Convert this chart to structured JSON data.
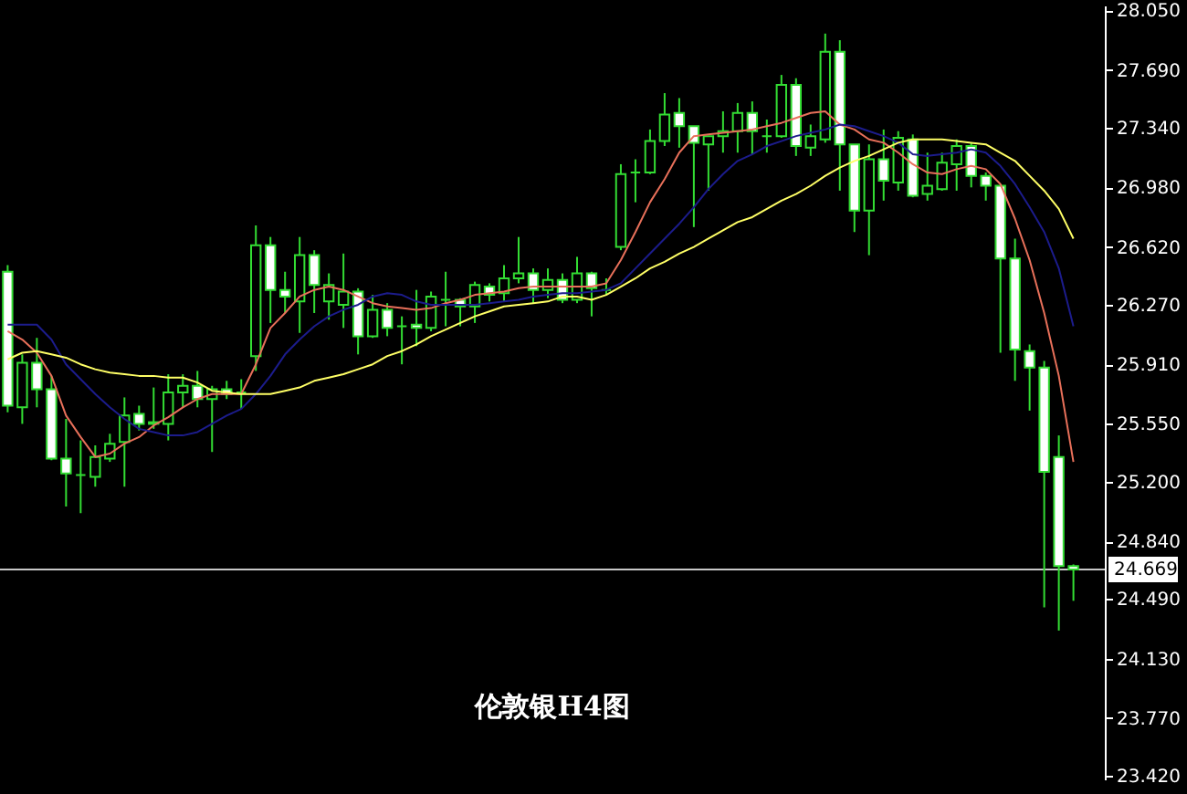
{
  "chart_data": {
    "type": "candlestick",
    "title": "伦敦银H4图",
    "color": "#33dd33",
    "categories": [
      null,
      null,
      null,
      null,
      null,
      null,
      null,
      null,
      null,
      null,
      null,
      null,
      null,
      null,
      null,
      null,
      null,
      null,
      null,
      null,
      null,
      null,
      null,
      null,
      null,
      null,
      null,
      null,
      null,
      null,
      null,
      null,
      null,
      null,
      null,
      null,
      null,
      null,
      null,
      null,
      null,
      null,
      null,
      null,
      null,
      null,
      null,
      null,
      null,
      null,
      null,
      null,
      null,
      null,
      null,
      null,
      null,
      null,
      null,
      null,
      null,
      null,
      null,
      null,
      null,
      null,
      null,
      null,
      null,
      null,
      null,
      null,
      null,
      null
    ],
    "ohlc": [
      [
        26.47,
        26.51,
        25.62,
        25.66
      ],
      [
        25.65,
        25.97,
        25.55,
        25.92
      ],
      [
        25.92,
        26.07,
        25.65,
        25.76
      ],
      [
        25.76,
        25.84,
        25.33,
        25.34
      ],
      [
        25.34,
        25.58,
        25.05,
        25.25
      ],
      [
        25.24,
        25.45,
        25.01,
        25.24
      ],
      [
        25.23,
        25.42,
        25.17,
        25.35
      ],
      [
        25.34,
        25.49,
        25.32,
        25.43
      ],
      [
        25.44,
        25.71,
        25.17,
        25.6
      ],
      [
        25.61,
        25.66,
        25.51,
        25.55
      ],
      [
        25.56,
        25.77,
        25.52,
        25.55
      ],
      [
        25.55,
        25.85,
        25.45,
        25.74
      ],
      [
        25.74,
        25.85,
        25.65,
        25.78
      ],
      [
        25.78,
        25.87,
        25.65,
        25.7
      ],
      [
        25.7,
        25.78,
        25.38,
        25.76
      ],
      [
        25.76,
        25.81,
        25.7,
        25.73
      ],
      [
        25.74,
        25.82,
        25.64,
        25.74
      ],
      [
        25.96,
        26.75,
        25.87,
        26.63
      ],
      [
        26.63,
        26.68,
        26.16,
        26.36
      ],
      [
        26.36,
        26.47,
        26.22,
        26.32
      ],
      [
        26.29,
        26.68,
        26.1,
        26.57
      ],
      [
        26.57,
        26.6,
        26.22,
        26.39
      ],
      [
        26.29,
        26.46,
        26.18,
        26.39
      ],
      [
        26.27,
        26.58,
        26.13,
        26.35
      ],
      [
        26.35,
        26.37,
        25.97,
        26.08
      ],
      [
        26.08,
        26.33,
        26.07,
        26.24
      ],
      [
        26.24,
        26.28,
        26.08,
        26.13
      ],
      [
        26.14,
        26.2,
        25.91,
        26.14
      ],
      [
        26.15,
        26.36,
        26.02,
        26.13
      ],
      [
        26.13,
        26.35,
        26.11,
        26.32
      ],
      [
        26.3,
        26.47,
        26.14,
        26.3
      ],
      [
        26.3,
        26.31,
        26.14,
        26.26
      ],
      [
        26.26,
        26.41,
        26.16,
        26.39
      ],
      [
        26.38,
        26.4,
        26.29,
        26.33
      ],
      [
        26.34,
        26.51,
        26.29,
        26.43
      ],
      [
        26.43,
        26.68,
        26.4,
        26.46
      ],
      [
        26.46,
        26.49,
        26.28,
        26.36
      ],
      [
        26.36,
        26.49,
        26.31,
        26.42
      ],
      [
        26.42,
        26.46,
        26.28,
        26.3
      ],
      [
        26.3,
        26.56,
        26.28,
        26.46
      ],
      [
        26.46,
        26.47,
        26.2,
        26.37
      ],
      [
        26.36,
        26.43,
        26.33,
        26.36
      ],
      [
        26.62,
        27.12,
        26.6,
        27.06
      ],
      [
        27.07,
        27.15,
        26.89,
        27.07
      ],
      [
        27.07,
        27.33,
        27.06,
        27.26
      ],
      [
        27.26,
        27.55,
        27.23,
        27.42
      ],
      [
        27.43,
        27.52,
        27.22,
        27.35
      ],
      [
        27.35,
        27.35,
        26.74,
        27.25
      ],
      [
        27.24,
        27.29,
        26.96,
        27.29
      ],
      [
        27.29,
        27.44,
        27.19,
        27.32
      ],
      [
        27.32,
        27.49,
        27.19,
        27.43
      ],
      [
        27.43,
        27.5,
        27.18,
        27.32
      ],
      [
        27.29,
        27.39,
        27.19,
        27.29
      ],
      [
        27.29,
        27.66,
        27.28,
        27.6
      ],
      [
        27.6,
        27.64,
        27.17,
        27.23
      ],
      [
        27.22,
        27.36,
        27.17,
        27.29
      ],
      [
        27.27,
        27.91,
        27.25,
        27.8
      ],
      [
        27.8,
        27.87,
        26.96,
        27.24
      ],
      [
        27.24,
        27.24,
        26.71,
        26.84
      ],
      [
        26.84,
        27.24,
        26.57,
        27.15
      ],
      [
        27.15,
        27.33,
        26.9,
        27.02
      ],
      [
        27.01,
        27.32,
        26.96,
        27.28
      ],
      [
        27.27,
        27.3,
        26.92,
        26.93
      ],
      [
        26.94,
        27.19,
        26.9,
        26.99
      ],
      [
        26.97,
        27.19,
        26.96,
        27.13
      ],
      [
        27.12,
        27.27,
        26.96,
        27.23
      ],
      [
        27.23,
        27.25,
        26.98,
        27.05
      ],
      [
        27.05,
        27.07,
        26.9,
        26.99
      ],
      [
        26.99,
        26.99,
        25.98,
        26.55
      ],
      [
        26.55,
        26.67,
        25.81,
        26.0
      ],
      [
        25.99,
        26.03,
        25.63,
        25.89
      ],
      [
        25.89,
        25.93,
        24.44,
        25.26
      ],
      [
        25.35,
        25.48,
        24.3,
        24.69
      ],
      [
        24.69,
        24.7,
        24.48,
        24.67
      ]
    ],
    "series": [
      {
        "type": "line",
        "color": "#e8705a",
        "values": [
          26.11,
          26.06,
          25.98,
          25.84,
          25.6,
          25.47,
          25.35,
          25.37,
          25.43,
          25.47,
          25.54,
          25.59,
          25.65,
          25.7,
          25.73,
          25.73,
          25.73,
          25.91,
          26.13,
          26.22,
          26.32,
          26.36,
          26.38,
          26.36,
          26.32,
          26.28,
          26.26,
          26.25,
          26.24,
          26.25,
          26.28,
          26.3,
          26.33,
          26.34,
          26.35,
          26.37,
          26.38,
          26.38,
          26.38,
          26.38,
          26.38,
          26.4,
          26.54,
          26.71,
          26.89,
          27.03,
          27.19,
          27.29,
          27.3,
          27.31,
          27.32,
          27.33,
          27.35,
          27.37,
          27.4,
          27.43,
          27.44,
          27.36,
          27.33,
          27.27,
          27.25,
          27.19,
          27.12,
          27.07,
          27.06,
          27.09,
          27.11,
          27.09,
          27.0,
          26.79,
          26.54,
          26.22,
          25.84,
          25.32
        ]
      },
      {
        "type": "line",
        "color": "#1c1c8c",
        "values": [
          26.15,
          26.15,
          26.15,
          26.06,
          25.91,
          25.82,
          25.73,
          25.65,
          25.58,
          25.52,
          25.5,
          25.48,
          25.48,
          25.5,
          25.55,
          25.6,
          25.64,
          25.73,
          25.84,
          25.97,
          26.06,
          26.14,
          26.2,
          26.24,
          26.27,
          26.32,
          26.34,
          26.33,
          26.29,
          26.27,
          26.27,
          26.27,
          26.27,
          26.28,
          26.29,
          26.3,
          26.32,
          26.33,
          26.34,
          26.34,
          26.35,
          26.36,
          26.4,
          26.49,
          26.58,
          26.67,
          26.76,
          26.86,
          26.97,
          27.06,
          27.14,
          27.18,
          27.23,
          27.26,
          27.29,
          27.31,
          27.33,
          27.36,
          27.35,
          27.32,
          27.29,
          27.25,
          27.18,
          27.17,
          27.18,
          27.19,
          27.21,
          27.19,
          27.11,
          27.0,
          26.86,
          26.71,
          26.49,
          26.14
        ]
      },
      {
        "type": "line",
        "color": "#ffff66",
        "values": [
          25.94,
          25.98,
          25.99,
          25.97,
          25.95,
          25.91,
          25.88,
          25.86,
          25.85,
          25.84,
          25.84,
          25.83,
          25.83,
          25.8,
          25.75,
          25.74,
          25.73,
          25.73,
          25.73,
          25.75,
          25.77,
          25.81,
          25.83,
          25.85,
          25.88,
          25.91,
          25.96,
          25.99,
          26.03,
          26.08,
          26.12,
          26.16,
          26.2,
          26.23,
          26.26,
          26.27,
          26.28,
          26.29,
          26.32,
          26.32,
          26.3,
          26.33,
          26.38,
          26.43,
          26.49,
          26.53,
          26.58,
          26.62,
          26.67,
          26.72,
          26.77,
          26.8,
          26.85,
          26.9,
          26.94,
          26.99,
          27.05,
          27.1,
          27.14,
          27.17,
          27.21,
          27.25,
          27.27,
          27.27,
          27.27,
          27.26,
          27.25,
          27.24,
          27.19,
          27.14,
          27.05,
          26.96,
          26.85,
          26.67
        ]
      }
    ],
    "ylim": [
      23.4,
      28.08
    ],
    "yticks": [
      {
        "value": 28.05,
        "label": "28.050"
      },
      {
        "value": 27.69,
        "label": "27.690"
      },
      {
        "value": 27.34,
        "label": "27.340"
      },
      {
        "value": 26.98,
        "label": "26.980"
      },
      {
        "value": 26.62,
        "label": "26.620"
      },
      {
        "value": 26.27,
        "label": "26.270"
      },
      {
        "value": 25.91,
        "label": "25.910"
      },
      {
        "value": 25.55,
        "label": "25.550"
      },
      {
        "value": 25.2,
        "label": "25.200"
      },
      {
        "value": 24.84,
        "label": "24.840"
      },
      {
        "value": 24.49,
        "label": "24.490"
      },
      {
        "value": 24.13,
        "label": "24.130"
      },
      {
        "value": 23.77,
        "label": "23.770"
      },
      {
        "value": 23.42,
        "label": "23.420"
      }
    ],
    "ref_lines": [
      {
        "axis": "y",
        "value": 24.669,
        "label": "24.669",
        "color": "#c8c8c8"
      }
    ],
    "tick_labels": "y",
    "grid": false
  }
}
